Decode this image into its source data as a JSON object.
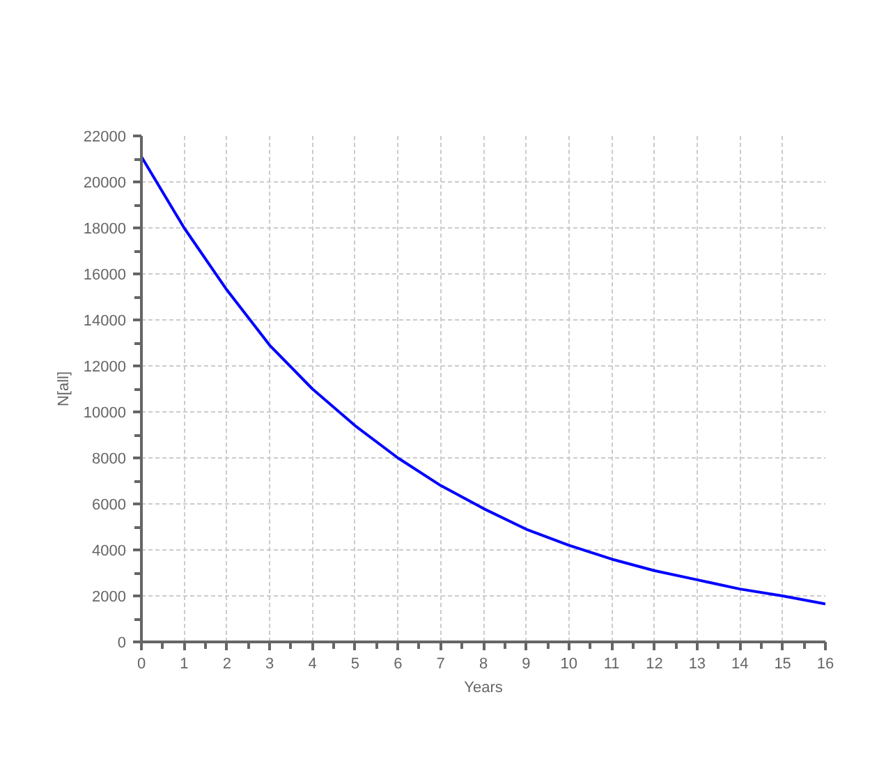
{
  "chart_data": {
    "type": "line",
    "xlabel": "Years",
    "ylabel": "N[all]",
    "x": [
      0,
      1,
      2,
      3,
      4,
      5,
      6,
      7,
      8,
      9,
      10,
      11,
      12,
      13,
      14,
      15,
      16
    ],
    "series": [
      {
        "color": "#0000ff",
        "values": [
          21100,
          18000,
          15300,
          12900,
          11000,
          9400,
          8000,
          6800,
          5800,
          4900,
          4200,
          3600,
          3100,
          2700,
          2300,
          2000,
          1650
        ]
      }
    ],
    "xlim": [
      0,
      16
    ],
    "ylim": [
      0,
      22000
    ],
    "xticks": [
      0,
      1,
      2,
      3,
      4,
      5,
      6,
      7,
      8,
      9,
      10,
      11,
      12,
      13,
      14,
      15,
      16
    ],
    "yticks": [
      0,
      2000,
      4000,
      6000,
      8000,
      10000,
      12000,
      14000,
      16000,
      18000,
      20000,
      22000
    ],
    "grid": true,
    "marker": "none",
    "line_style": "solid"
  }
}
